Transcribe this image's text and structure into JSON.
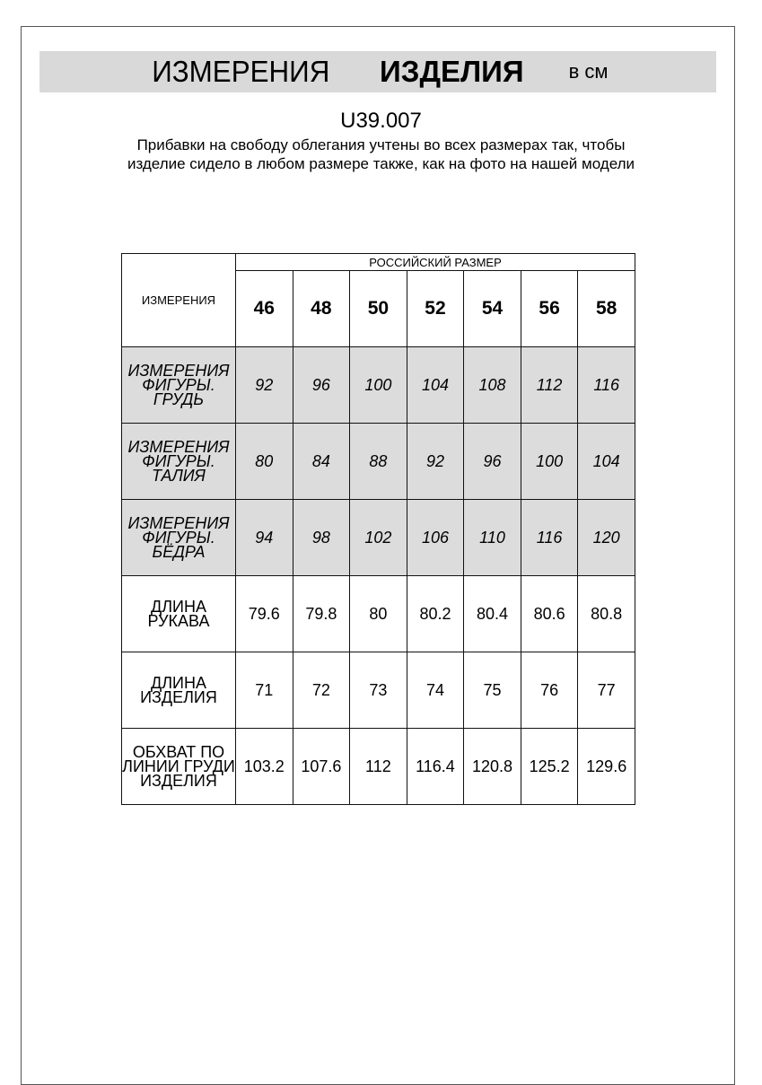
{
  "header": {
    "title_regular": "ИЗМЕРЕНИЯ",
    "title_bold": "ИЗДЕЛИЯ",
    "unit": "в см"
  },
  "article_code": "U39.007",
  "note": "Прибавки на свободу облегания учтены во всех размерах так, чтобы изделие сидело в любом размере также, как на фото на нашей модели",
  "table": {
    "corner_label": "ИЗМЕРЕНИЯ",
    "group_header": "РОССИЙСКИЙ РАЗМЕР",
    "sizes": [
      "46",
      "48",
      "50",
      "52",
      "54",
      "56",
      "58"
    ],
    "rows": [
      {
        "label": "ИЗМЕРЕНИЯ ФИГУРЫ. ГРУДЬ",
        "values": [
          "92",
          "96",
          "100",
          "104",
          "108",
          "112",
          "116"
        ],
        "shaded": true
      },
      {
        "label": "ИЗМЕРЕНИЯ ФИГУРЫ. ТАЛИЯ",
        "values": [
          "80",
          "84",
          "88",
          "92",
          "96",
          "100",
          "104"
        ],
        "shaded": true
      },
      {
        "label": "ИЗМЕРЕНИЯ ФИГУРЫ. БЁДРА",
        "values": [
          "94",
          "98",
          "102",
          "106",
          "110",
          "116",
          "120"
        ],
        "shaded": true
      },
      {
        "label": "ДЛИНА РУКАВА",
        "values": [
          "79.6",
          "79.8",
          "80",
          "80.2",
          "80.4",
          "80.6",
          "80.8"
        ],
        "shaded": false
      },
      {
        "label": "ДЛИНА ИЗДЕЛИЯ",
        "values": [
          "71",
          "72",
          "73",
          "74",
          "75",
          "76",
          "77"
        ],
        "shaded": false
      },
      {
        "label": "ОБХВАТ ПО ЛИНИИ ГРУДИ ИЗДЕЛИЯ",
        "values": [
          "103.2",
          "107.6",
          "112",
          "116.4",
          "120.8",
          "125.2",
          "129.6"
        ],
        "shaded": false
      }
    ]
  },
  "colors": {
    "banner": "#d9d9d9",
    "shaded_row": "#dcdcdc"
  }
}
